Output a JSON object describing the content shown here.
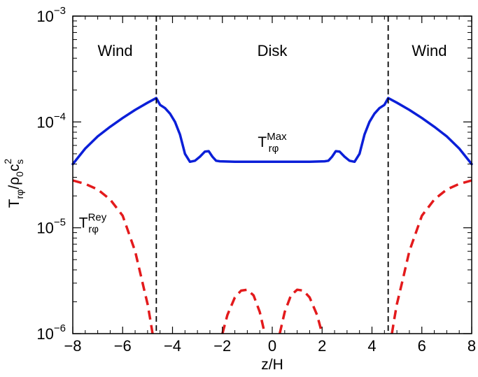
{
  "chart_data": {
    "type": "line",
    "title": "",
    "xlabel": "z/H",
    "ylabel": {
      "main": "T",
      "sub1": "rφ",
      "mid": "/ρ",
      "sub2": "0",
      "c": "c",
      "sup": "2",
      "sub3": "s"
    },
    "xlim": [
      -8,
      8
    ],
    "ylim": [
      1e-06,
      0.001
    ],
    "yscale": "log",
    "grid": false,
    "legend": "none",
    "x_ticks": [
      -8,
      -6,
      -4,
      -2,
      0,
      2,
      4,
      6,
      8
    ],
    "y_ticks": [
      {
        "value": 1e-06,
        "base": "10",
        "exp": "−6"
      },
      {
        "value": 1e-05,
        "base": "10",
        "exp": "−5"
      },
      {
        "value": 0.0001,
        "base": "10",
        "exp": "−4"
      },
      {
        "value": 0.001,
        "base": "10",
        "exp": "−3"
      }
    ],
    "vlines": [
      -4.65,
      4.65
    ],
    "regions": [
      {
        "label": "Wind",
        "x": -6.3
      },
      {
        "label": "Disk",
        "x": 0
      },
      {
        "label": "Wind",
        "x": 6.3
      }
    ],
    "annotations": [
      {
        "name": "maxwell",
        "base": "T",
        "sub": "rφ",
        "sup": "Max",
        "x": 0,
        "y": 5.8e-05
      },
      {
        "name": "reynolds",
        "base": "T",
        "sub": "rφ",
        "sup": "Rey",
        "x": -7.2,
        "y": 1e-05
      }
    ],
    "series": [
      {
        "id": "maxwell",
        "color": "#0b1fd8",
        "dash": "solid",
        "x": [
          -8,
          -7.5,
          -7,
          -6.5,
          -6,
          -5.5,
          -5,
          -4.65,
          -4.5,
          -4.3,
          -4.1,
          -3.9,
          -3.7,
          -3.5,
          -3.3,
          -3.1,
          -2.9,
          -2.7,
          -2.55,
          -2.4,
          -2.25,
          -2.1,
          -1.5,
          -1,
          0,
          1,
          1.5,
          2.1,
          2.25,
          2.4,
          2.55,
          2.7,
          2.9,
          3.1,
          3.3,
          3.5,
          3.7,
          3.9,
          4.1,
          4.3,
          4.5,
          4.65,
          5,
          5.5,
          6,
          6.5,
          7,
          7.5,
          8
        ],
        "y": [
          4e-05,
          5.6e-05,
          7.3e-05,
          9e-05,
          0.000109,
          0.00013,
          0.000152,
          0.000168,
          0.000145,
          0.000135,
          0.00012,
          0.0001,
          7.6e-05,
          5e-05,
          4.2e-05,
          4.3e-05,
          4.7e-05,
          5.25e-05,
          5.3e-05,
          4.7e-05,
          4.3e-05,
          4.25e-05,
          4.2e-05,
          4.2e-05,
          4.2e-05,
          4.2e-05,
          4.2e-05,
          4.25e-05,
          4.3e-05,
          4.7e-05,
          5.3e-05,
          5.25e-05,
          4.7e-05,
          4.3e-05,
          4.2e-05,
          5e-05,
          7.6e-05,
          0.0001,
          0.00012,
          0.000135,
          0.000145,
          0.000168,
          0.000152,
          0.00013,
          0.000109,
          9e-05,
          7.3e-05,
          5.6e-05,
          4e-05
        ]
      },
      {
        "id": "reynolds-left",
        "color": "#e31a1c",
        "dash": "dashed",
        "x": [
          -8,
          -7.5,
          -7,
          -6.5,
          -6,
          -5.5,
          -5.2,
          -5,
          -4.9,
          -4.8
        ],
        "y": [
          2.8e-05,
          2.6e-05,
          2.3e-05,
          1.85e-05,
          1.3e-05,
          6e-06,
          3e-06,
          1.9e-06,
          1.4e-06,
          1e-06
        ]
      },
      {
        "id": "reynolds-center-left",
        "color": "#e31a1c",
        "dash": "dashed",
        "x": [
          -2.0,
          -1.8,
          -1.5,
          -1.25,
          -1.0,
          -0.75,
          -0.5,
          -0.3
        ],
        "y": [
          1e-06,
          1.5e-06,
          2.2e-06,
          2.55e-06,
          2.6e-06,
          2.3e-06,
          1.6e-06,
          1e-06
        ]
      },
      {
        "id": "reynolds-center-right",
        "color": "#e31a1c",
        "dash": "dashed",
        "x": [
          0.3,
          0.5,
          0.75,
          1.0,
          1.25,
          1.5,
          1.8,
          2.0
        ],
        "y": [
          1e-06,
          1.6e-06,
          2.3e-06,
          2.6e-06,
          2.55e-06,
          2.2e-06,
          1.5e-06,
          1e-06
        ]
      },
      {
        "id": "reynolds-right",
        "color": "#e31a1c",
        "dash": "dashed",
        "x": [
          4.8,
          4.9,
          5,
          5.2,
          5.5,
          6,
          6.5,
          7,
          7.5,
          8
        ],
        "y": [
          1e-06,
          1.4e-06,
          1.9e-06,
          3e-06,
          6e-06,
          1.3e-05,
          1.85e-05,
          2.3e-05,
          2.6e-05,
          2.8e-05
        ]
      }
    ]
  }
}
